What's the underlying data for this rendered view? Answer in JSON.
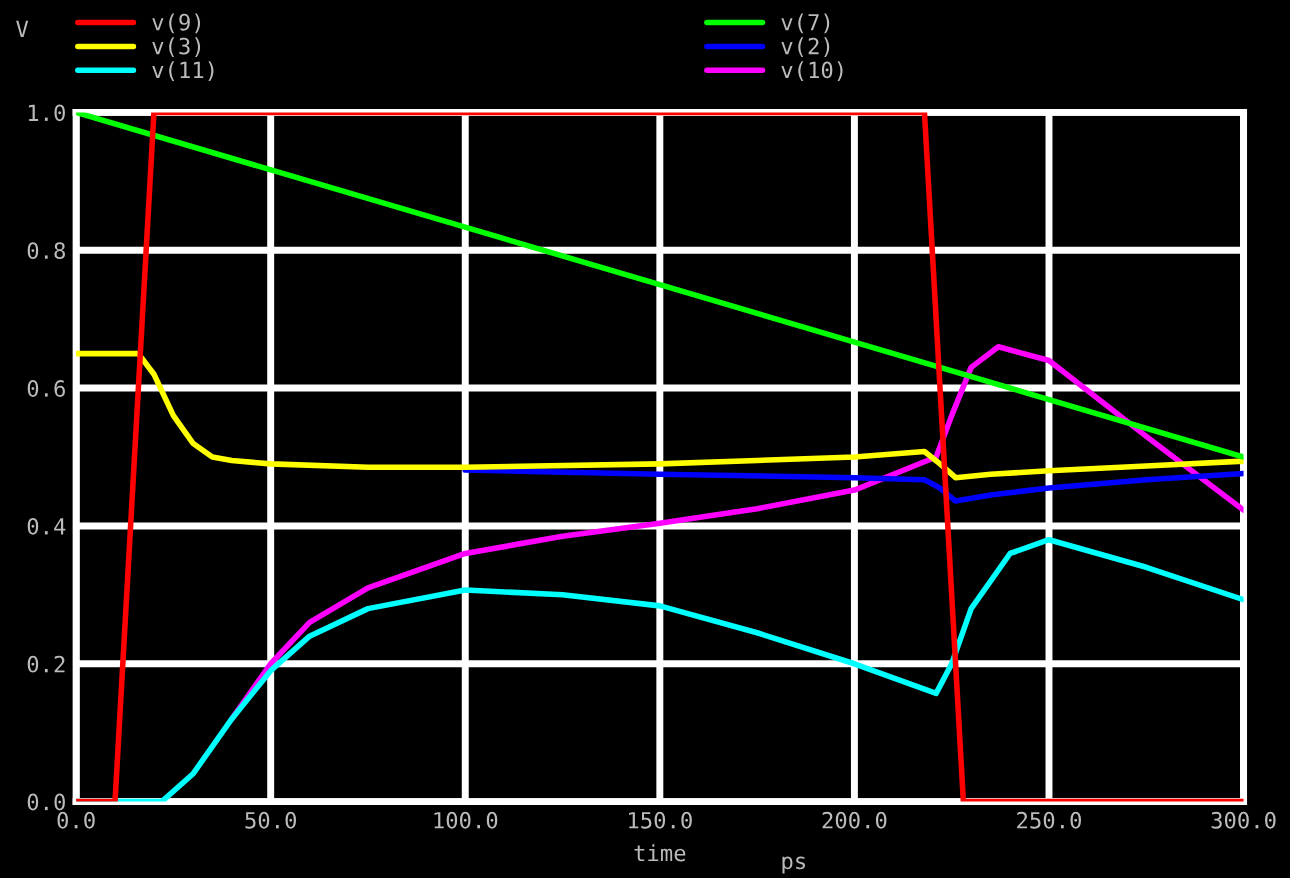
{
  "chart_data": {
    "type": "line",
    "ylabel": "V",
    "xlabel": "time",
    "annotations": [
      "ps"
    ],
    "xlim": [
      0,
      300
    ],
    "xticks": [
      {
        "value": 0,
        "label": "0.0"
      },
      {
        "value": 50,
        "label": "50.0"
      },
      {
        "value": 100,
        "label": "100.0"
      },
      {
        "value": 150,
        "label": "150.0"
      },
      {
        "value": 200,
        "label": "200.0"
      },
      {
        "value": 250,
        "label": "250.0"
      },
      {
        "value": 300,
        "label": "300.0"
      }
    ],
    "ylim": [
      0,
      1
    ],
    "yticks": [
      {
        "value": 0,
        "label": "0.0"
      },
      0.2,
      0.4,
      0.6,
      0.8,
      {
        "value": 1,
        "label": "1.0"
      }
    ],
    "grid": true,
    "legend": "top",
    "marker": "none",
    "line_style": "solid",
    "series": [
      {
        "name": "v(9)",
        "color": "#ff0000",
        "x": [
          0,
          10,
          20,
          218,
          228,
          300
        ],
        "values": [
          0,
          0,
          1,
          1,
          0,
          0
        ]
      },
      {
        "name": "v(7)",
        "color": "#00ff00",
        "x": [
          0,
          300
        ],
        "values": [
          1,
          0.5
        ]
      },
      {
        "name": "v(3)",
        "color": "#ffff00",
        "x": [
          0,
          16,
          20,
          25,
          30,
          35,
          40,
          50,
          75,
          100,
          150,
          200,
          218,
          222,
          226,
          235,
          250,
          275,
          300
        ],
        "values": [
          0.65,
          0.65,
          0.62,
          0.56,
          0.52,
          0.5,
          0.495,
          0.49,
          0.485,
          0.485,
          0.49,
          0.5,
          0.508,
          0.49,
          0.47,
          0.475,
          0.48,
          0.487,
          0.494
        ]
      },
      {
        "name": "v(2)",
        "color": "#0000ff",
        "x": [
          100,
          150,
          200,
          218,
          222,
          226,
          235,
          250,
          275,
          300
        ],
        "values": [
          0.481,
          0.475,
          0.47,
          0.467,
          0.455,
          0.436,
          0.445,
          0.455,
          0.467,
          0.476
        ]
      },
      {
        "name": "v(11)",
        "color": "#00ffff",
        "x": [
          0,
          22,
          30,
          40,
          50,
          60,
          75,
          100,
          125,
          150,
          175,
          200,
          221,
          225,
          230,
          240,
          250,
          275,
          300
        ],
        "values": [
          0,
          0,
          0.04,
          0.12,
          0.19,
          0.24,
          0.28,
          0.307,
          0.3,
          0.284,
          0.245,
          0.2,
          0.157,
          0.2,
          0.28,
          0.36,
          0.38,
          0.34,
          0.293
        ]
      },
      {
        "name": "v(10)",
        "color": "#ff00ff",
        "x": [
          40,
          50,
          60,
          75,
          100,
          125,
          150,
          175,
          200,
          221,
          225,
          230,
          237,
          250,
          275,
          300
        ],
        "values": [
          0.12,
          0.2,
          0.26,
          0.31,
          0.36,
          0.385,
          0.404,
          0.425,
          0.452,
          0.5,
          0.56,
          0.63,
          0.66,
          0.64,
          0.53,
          0.423
        ]
      }
    ]
  }
}
